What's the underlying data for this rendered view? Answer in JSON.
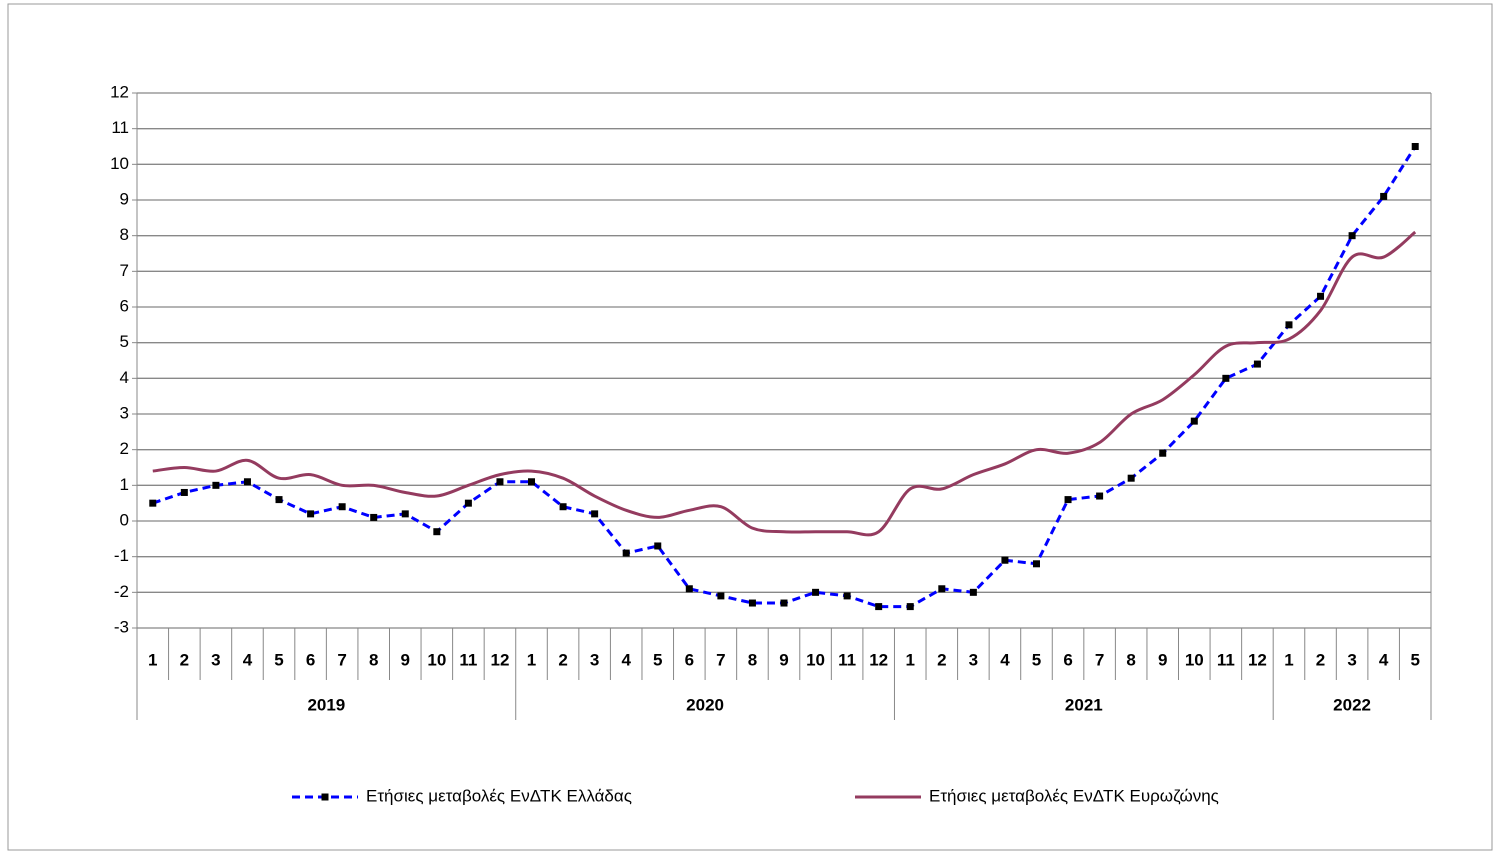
{
  "chart_data": {
    "type": "line",
    "categories": [
      "1",
      "2",
      "3",
      "4",
      "5",
      "6",
      "7",
      "8",
      "9",
      "10",
      "11",
      "12",
      "1",
      "2",
      "3",
      "4",
      "5",
      "6",
      "7",
      "8",
      "9",
      "10",
      "11",
      "12",
      "1",
      "2",
      "3",
      "4",
      "5",
      "6",
      "7",
      "8",
      "9",
      "10",
      "11",
      "12",
      "1",
      "2",
      "3",
      "4",
      "5"
    ],
    "years": [
      "2019",
      "2020",
      "2021",
      "2022"
    ],
    "series": [
      {
        "name": "Ετήσιες μεταβολές ΕνΔΤΚ Ελλάδας",
        "color": "#0000ff",
        "style": "dashed",
        "marker": "square",
        "values": [
          0.5,
          0.8,
          1.0,
          1.1,
          0.6,
          0.2,
          0.4,
          0.1,
          0.2,
          -0.3,
          0.5,
          1.1,
          1.1,
          0.4,
          0.2,
          -0.9,
          -0.7,
          -1.9,
          -2.1,
          -2.3,
          -2.3,
          -2.0,
          -2.1,
          -2.4,
          -2.4,
          -1.9,
          -2.0,
          -1.1,
          -1.2,
          0.6,
          0.7,
          1.2,
          1.9,
          2.8,
          4.0,
          4.4,
          5.5,
          6.3,
          8.0,
          9.1,
          10.5
        ]
      },
      {
        "name": "Ετήσιες μεταβολές ΕνΔΤΚ Ευρωζώνης",
        "color": "#943b5f",
        "style": "smooth",
        "values": [
          1.4,
          1.5,
          1.4,
          1.7,
          1.2,
          1.3,
          1.0,
          1.0,
          0.8,
          0.7,
          1.0,
          1.3,
          1.4,
          1.2,
          0.7,
          0.3,
          0.1,
          0.3,
          0.4,
          -0.2,
          -0.3,
          -0.3,
          -0.3,
          -0.3,
          0.9,
          0.9,
          1.3,
          1.6,
          2.0,
          1.9,
          2.2,
          3.0,
          3.4,
          4.1,
          4.9,
          5.0,
          5.1,
          5.9,
          7.4,
          7.4,
          8.1
        ]
      }
    ],
    "ylim": [
      -3,
      12
    ],
    "yticks": [
      -3,
      -2,
      -1,
      0,
      1,
      2,
      3,
      4,
      5,
      6,
      7,
      8,
      9,
      10,
      11,
      12
    ],
    "grid": true
  }
}
